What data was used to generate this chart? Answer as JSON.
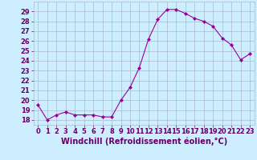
{
  "x": [
    0,
    1,
    2,
    3,
    4,
    5,
    6,
    7,
    8,
    9,
    10,
    11,
    12,
    13,
    14,
    15,
    16,
    17,
    18,
    19,
    20,
    21,
    22,
    23
  ],
  "y": [
    19.5,
    18.0,
    18.5,
    18.8,
    18.5,
    18.5,
    18.5,
    18.3,
    18.3,
    20.0,
    21.3,
    23.3,
    26.2,
    28.2,
    29.2,
    29.2,
    28.8,
    28.3,
    28.0,
    27.5,
    26.3,
    25.6,
    24.1,
    24.7
  ],
  "line_color": "#990099",
  "marker": "D",
  "marker_size": 2,
  "bg_color": "#cceeff",
  "grid_color": "#aabbcc",
  "xlabel": "Windchill (Refroidissement éolien,°C)",
  "xlabel_fontsize": 7,
  "xlabel_color": "#660066",
  "tick_color": "#660066",
  "tick_fontsize": 6,
  "ylim": [
    17.5,
    30.0
  ],
  "xlim": [
    -0.5,
    23.5
  ],
  "yticks": [
    18,
    19,
    20,
    21,
    22,
    23,
    24,
    25,
    26,
    27,
    28,
    29
  ],
  "xticks": [
    0,
    1,
    2,
    3,
    4,
    5,
    6,
    7,
    8,
    9,
    10,
    11,
    12,
    13,
    14,
    15,
    16,
    17,
    18,
    19,
    20,
    21,
    22,
    23
  ]
}
